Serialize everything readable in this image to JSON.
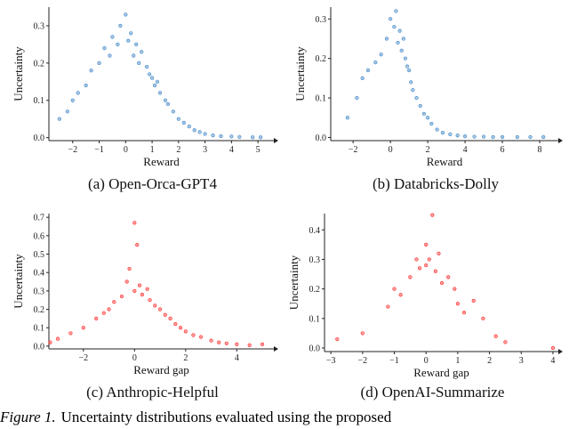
{
  "chart_data": [
    {
      "type": "scatter",
      "subcaption": "(a) Open-Orca-GPT4",
      "x_label": "Reward",
      "y_label": "Uncertainty",
      "color": "#3f86c6",
      "x": [
        -2.5,
        -2.2,
        -2,
        -1.8,
        -1.5,
        -1.3,
        -1,
        -0.8,
        -0.6,
        -0.5,
        -0.3,
        -0.2,
        0,
        0.1,
        0.2,
        0.3,
        0.4,
        0.5,
        0.6,
        0.8,
        0.9,
        1,
        1.1,
        1.2,
        1.3,
        1.5,
        1.6,
        1.8,
        2,
        2.2,
        2.4,
        2.6,
        2.8,
        3,
        3.3,
        3.6,
        4,
        4.3,
        4.8,
        5.1
      ],
      "values": [
        0.05,
        0.07,
        0.1,
        0.12,
        0.14,
        0.18,
        0.2,
        0.24,
        0.22,
        0.27,
        0.25,
        0.3,
        0.33,
        0.26,
        0.28,
        0.22,
        0.25,
        0.2,
        0.23,
        0.19,
        0.17,
        0.16,
        0.14,
        0.15,
        0.12,
        0.1,
        0.09,
        0.07,
        0.05,
        0.04,
        0.03,
        0.02,
        0.015,
        0.01,
        0.006,
        0.004,
        0.003,
        0.002,
        0.001,
        0.001
      ],
      "xlim": [
        -2.9,
        5.6
      ],
      "ylim": [
        -0.008,
        0.35
      ],
      "xticks": [
        {
          "value": -2,
          "label": "−2"
        },
        {
          "value": -1,
          "label": "−1"
        },
        0,
        1,
        2,
        3,
        4,
        5
      ],
      "yticks": [
        {
          "value": 0,
          "label": "0.0"
        },
        0.1,
        0.2,
        0.3
      ]
    },
    {
      "type": "scatter",
      "subcaption": "(b) Databricks-Dolly",
      "x_label": "Reward",
      "y_label": "Uncertainty",
      "color": "#3f86c6",
      "x": [
        -2.3,
        -1.8,
        -1.5,
        -1.2,
        -0.8,
        -0.5,
        -0.2,
        0,
        0.2,
        0.3,
        0.4,
        0.5,
        0.6,
        0.7,
        0.8,
        0.9,
        1,
        1.1,
        1.2,
        1.4,
        1.6,
        1.8,
        2,
        2.2,
        2.5,
        2.8,
        3.2,
        3.6,
        4,
        4.5,
        5,
        5.5,
        6,
        6.8,
        7.5,
        8.2
      ],
      "values": [
        0.05,
        0.1,
        0.15,
        0.17,
        0.19,
        0.21,
        0.25,
        0.3,
        0.28,
        0.32,
        0.24,
        0.27,
        0.22,
        0.25,
        0.2,
        0.18,
        0.17,
        0.14,
        0.12,
        0.1,
        0.08,
        0.06,
        0.05,
        0.035,
        0.02,
        0.012,
        0.008,
        0.005,
        0.003,
        0.002,
        0.002,
        0.001,
        0.001,
        0.001,
        0.001,
        0.001
      ],
      "xlim": [
        -3.2,
        9
      ],
      "ylim": [
        -0.008,
        0.33
      ],
      "xticks": [
        {
          "value": -2,
          "label": "−2"
        },
        0,
        2,
        4,
        6,
        8
      ],
      "yticks": [
        {
          "value": 0,
          "label": "0.0"
        },
        0.1,
        0.2,
        0.3
      ]
    },
    {
      "type": "scatter",
      "subcaption": "(c) Anthropic-Helpful",
      "x_label": "Reward gap",
      "y_label": "Uncertainty",
      "color": "#ff2a2a",
      "x": [
        -3.3,
        -3,
        -2.5,
        -2,
        -1.5,
        -1.2,
        -1,
        -0.8,
        -0.5,
        -0.3,
        -0.2,
        0,
        0,
        0.1,
        0.2,
        0.3,
        0.5,
        0.6,
        0.8,
        1,
        1.2,
        1.4,
        1.6,
        1.8,
        2,
        2.3,
        2.6,
        3,
        3.3,
        3.6,
        4,
        4.5,
        5
      ],
      "values": [
        0.02,
        0.04,
        0.07,
        0.1,
        0.15,
        0.18,
        0.2,
        0.24,
        0.27,
        0.35,
        0.42,
        0.67,
        0.3,
        0.55,
        0.33,
        0.28,
        0.31,
        0.25,
        0.22,
        0.2,
        0.17,
        0.15,
        0.12,
        0.1,
        0.08,
        0.06,
        0.05,
        0.03,
        0.02,
        0.015,
        0.01,
        0.005,
        0.01
      ],
      "xlim": [
        -3.35,
        5.45
      ],
      "ylim": [
        -0.015,
        0.72
      ],
      "xticks": [
        {
          "value": -2,
          "label": "−2"
        },
        0,
        2,
        4
      ],
      "yticks": [
        {
          "value": 0,
          "label": "0.0"
        },
        0.1,
        0.2,
        0.3,
        0.4,
        0.5,
        0.6,
        0.7
      ]
    },
    {
      "type": "scatter",
      "subcaption": "(d) OpenAI-Summarize",
      "x_label": "Reward gap",
      "y_label": "Uncertainty",
      "color": "#ff2a2a",
      "x": [
        -2.8,
        -2,
        -1.2,
        -1,
        -0.8,
        -0.5,
        -0.3,
        -0.2,
        0,
        0,
        0.1,
        0.2,
        0.3,
        0.4,
        0.5,
        0.7,
        0.9,
        1,
        1.2,
        1.5,
        1.8,
        2.2,
        2.5,
        4
      ],
      "values": [
        0.03,
        0.05,
        0.14,
        0.2,
        0.18,
        0.24,
        0.3,
        0.27,
        0.35,
        0.28,
        0.3,
        0.45,
        0.26,
        0.32,
        0.22,
        0.24,
        0.2,
        0.15,
        0.12,
        0.16,
        0.1,
        0.04,
        0.02,
        0.0
      ],
      "xlim": [
        -3.2,
        4.17
      ],
      "ylim": [
        -0.012,
        0.455
      ],
      "xticks": [
        {
          "value": -3,
          "label": "−3"
        },
        {
          "value": -2,
          "label": "−2"
        },
        {
          "value": -1,
          "label": "−1"
        },
        0,
        1,
        2,
        3,
        4
      ],
      "yticks": [
        {
          "value": 0,
          "label": "0.0"
        },
        0.1,
        0.2,
        0.3,
        0.4
      ]
    }
  ],
  "caption": {
    "label": "Figure 1.",
    "text": "Uncertainty distributions evaluated using the proposed"
  }
}
